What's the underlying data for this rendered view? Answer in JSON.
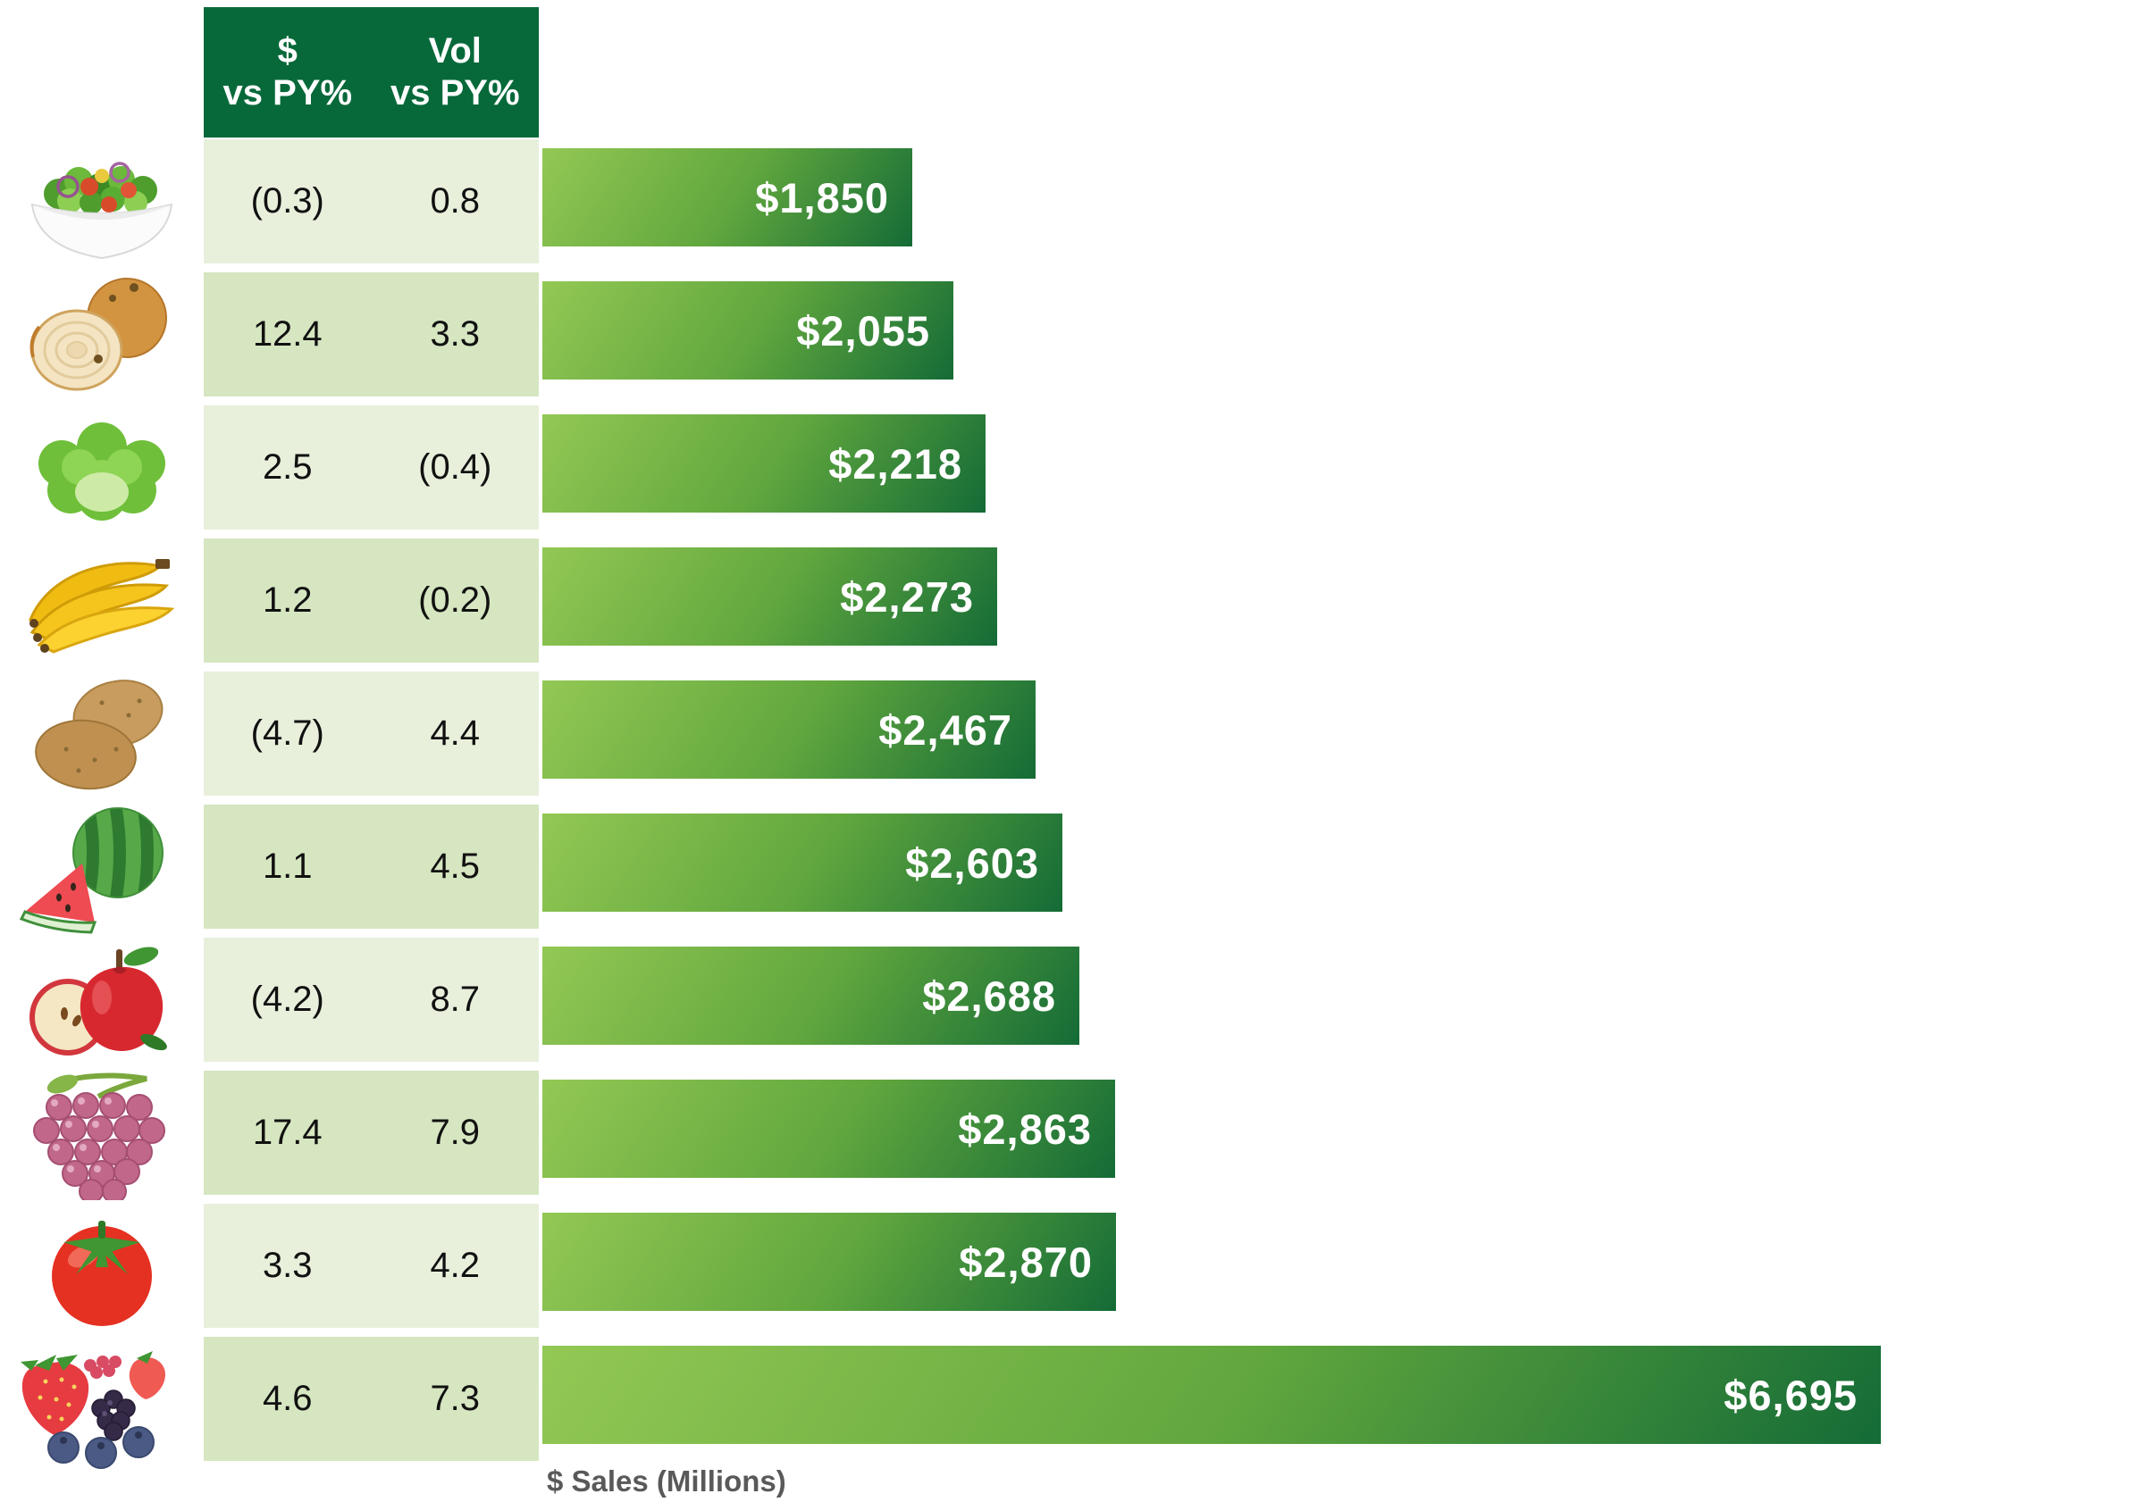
{
  "chart_data": {
    "type": "bar",
    "orientation": "horizontal",
    "title": "",
    "xlabel": "$ Sales (Millions)",
    "legend": null,
    "grid": false,
    "xlim": [
      0,
      6695
    ],
    "header": {
      "col1": [
        "$",
        "vs PY%"
      ],
      "col2": [
        "Vol",
        "vs PY%"
      ]
    },
    "rows": [
      {
        "icon": "salad-bowl-icon",
        "dollar_vs_py": "(0.3)",
        "vol_vs_py": "0.8",
        "sales": 1850,
        "sales_label": "$1,850"
      },
      {
        "icon": "onion-icon",
        "dollar_vs_py": "12.4",
        "vol_vs_py": "3.3",
        "sales": 2055,
        "sales_label": "$2,055"
      },
      {
        "icon": "lettuce-icon",
        "dollar_vs_py": "2.5",
        "vol_vs_py": "(0.4)",
        "sales": 2218,
        "sales_label": "$2,218"
      },
      {
        "icon": "bananas-icon",
        "dollar_vs_py": "1.2",
        "vol_vs_py": "(0.2)",
        "sales": 2273,
        "sales_label": "$2,273"
      },
      {
        "icon": "potatoes-icon",
        "dollar_vs_py": "(4.7)",
        "vol_vs_py": "4.4",
        "sales": 2467,
        "sales_label": "$2,467"
      },
      {
        "icon": "watermelon-icon",
        "dollar_vs_py": "1.1",
        "vol_vs_py": "4.5",
        "sales": 2603,
        "sales_label": "$2,603"
      },
      {
        "icon": "apple-icon",
        "dollar_vs_py": "(4.2)",
        "vol_vs_py": "8.7",
        "sales": 2688,
        "sales_label": "$2,688"
      },
      {
        "icon": "grapes-icon",
        "dollar_vs_py": "17.4",
        "vol_vs_py": "7.9",
        "sales": 2863,
        "sales_label": "$2,863"
      },
      {
        "icon": "tomato-icon",
        "dollar_vs_py": "3.3",
        "vol_vs_py": "4.2",
        "sales": 2870,
        "sales_label": "$2,870"
      },
      {
        "icon": "berries-icon",
        "dollar_vs_py": "4.6",
        "vol_vs_py": "7.3",
        "sales": 6695,
        "sales_label": "$6,695"
      }
    ]
  },
  "colors": {
    "header_green": "#07693A",
    "row_light": "#E8F0DC",
    "row_dark": "#D6E6C1",
    "bar_light": "#93C854",
    "bar_mid": "#61A73E",
    "bar_dark": "#146B36",
    "axis_gray": "#595959",
    "value_text": "#111111",
    "bar_label": "#FFFFFF"
  }
}
